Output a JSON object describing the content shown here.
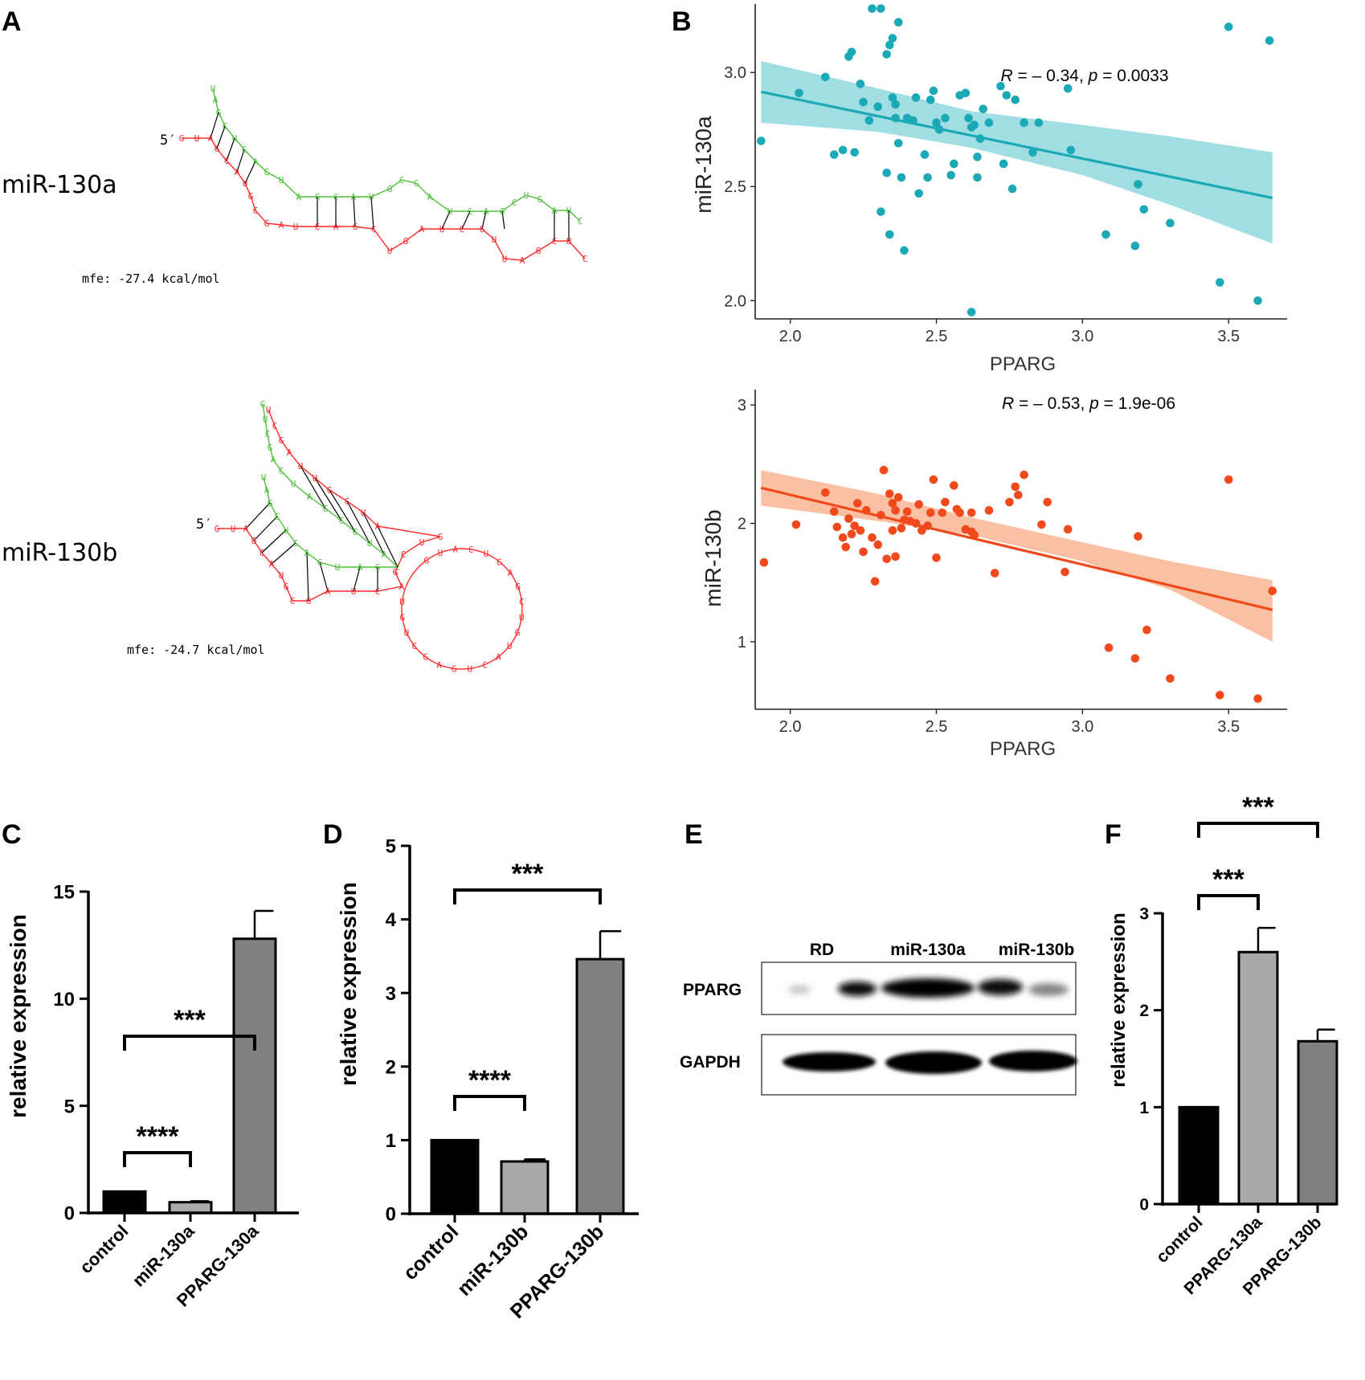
{
  "panel_labels": {
    "a": "A",
    "b": "B",
    "c": "C",
    "d": "D",
    "e": "E",
    "f": "F"
  },
  "rna_structures": [
    {
      "name": "miR-130a",
      "five_prime": "5′",
      "mfe": "mfe: -27.4 kcal/mol",
      "colors": {
        "mirna": "#4ec23a",
        "target": "#ff2a2a",
        "pair": "#000000"
      }
    },
    {
      "name": "miR-130b",
      "five_prime": "5′",
      "mfe": "mfe: -24.7 kcal/mol",
      "colors": {
        "mirna": "#4ec23a",
        "target": "#ff2a2a",
        "pair": "#000000"
      }
    }
  ],
  "western_blot": {
    "lanes": [
      "RD",
      "miR-130a",
      "miR-130b"
    ],
    "rows": [
      "PPARG",
      "GAPDH"
    ]
  },
  "chart_data": [
    {
      "id": "B-top",
      "type": "scatter",
      "xlabel": "PPARG",
      "ylabel": "miR-130a",
      "annotation": {
        "r_label": "R",
        "r_value": " = – 0.34, ",
        "p_label": "p",
        "p_value": " = 0.0033"
      },
      "xlim": [
        1.88,
        3.7
      ],
      "ylim": [
        1.92,
        3.3
      ],
      "xticks": [
        2.0,
        2.5,
        3.0,
        3.5
      ],
      "xtick_labels": [
        "2.0",
        "2.5",
        "3.0",
        "3.5"
      ],
      "yticks": [
        2.0,
        2.5,
        3.0
      ],
      "ytick_labels": [
        "2.0",
        "2.5",
        "3.0"
      ],
      "color": "#1ba9b5",
      "band_color": "#8fd8df",
      "fit": {
        "x": [
          1.9,
          3.65
        ],
        "y": [
          2.915,
          2.45
        ]
      },
      "band": {
        "x": [
          1.9,
          2.3,
          2.62,
          3.0,
          3.3,
          3.65
        ],
        "upper": [
          3.05,
          2.93,
          2.83,
          2.77,
          2.72,
          2.65
        ],
        "lower": [
          2.78,
          2.74,
          2.67,
          2.55,
          2.42,
          2.25
        ]
      },
      "points": [
        [
          1.9,
          2.7
        ],
        [
          2.03,
          2.91
        ],
        [
          2.12,
          2.98
        ],
        [
          2.15,
          2.64
        ],
        [
          2.18,
          2.66
        ],
        [
          2.2,
          3.07
        ],
        [
          2.21,
          3.09
        ],
        [
          2.22,
          2.65
        ],
        [
          2.24,
          2.95
        ],
        [
          2.25,
          2.87
        ],
        [
          2.27,
          2.79
        ],
        [
          2.28,
          3.28
        ],
        [
          2.3,
          2.85
        ],
        [
          2.31,
          3.28
        ],
        [
          2.31,
          2.39
        ],
        [
          2.33,
          2.56
        ],
        [
          2.33,
          3.08
        ],
        [
          2.34,
          3.12
        ],
        [
          2.34,
          2.29
        ],
        [
          2.35,
          3.15
        ],
        [
          2.35,
          2.89
        ],
        [
          2.36,
          2.86
        ],
        [
          2.36,
          2.8
        ],
        [
          2.37,
          2.69
        ],
        [
          2.37,
          3.22
        ],
        [
          2.38,
          2.54
        ],
        [
          2.39,
          2.22
        ],
        [
          2.4,
          2.8
        ],
        [
          2.42,
          2.79
        ],
        [
          2.43,
          2.89
        ],
        [
          2.44,
          2.47
        ],
        [
          2.46,
          2.64
        ],
        [
          2.47,
          2.54
        ],
        [
          2.48,
          2.88
        ],
        [
          2.49,
          2.92
        ],
        [
          2.5,
          2.78
        ],
        [
          2.51,
          2.75
        ],
        [
          2.53,
          2.8
        ],
        [
          2.55,
          2.55
        ],
        [
          2.56,
          2.6
        ],
        [
          2.58,
          2.9
        ],
        [
          2.6,
          2.91
        ],
        [
          2.61,
          2.8
        ],
        [
          2.62,
          2.76
        ],
        [
          2.63,
          2.77
        ],
        [
          2.64,
          2.54
        ],
        [
          2.64,
          2.63
        ],
        [
          2.65,
          2.71
        ],
        [
          2.66,
          2.84
        ],
        [
          2.68,
          2.78
        ],
        [
          2.72,
          2.94
        ],
        [
          2.73,
          2.6
        ],
        [
          2.74,
          2.9
        ],
        [
          2.76,
          2.49
        ],
        [
          2.77,
          2.88
        ],
        [
          2.8,
          2.78
        ],
        [
          2.83,
          2.65
        ],
        [
          2.85,
          2.78
        ],
        [
          2.95,
          2.93
        ],
        [
          2.96,
          2.66
        ],
        [
          3.08,
          2.29
        ],
        [
          3.18,
          2.24
        ],
        [
          3.19,
          2.51
        ],
        [
          3.21,
          2.4
        ],
        [
          3.3,
          2.34
        ],
        [
          3.47,
          2.08
        ],
        [
          3.5,
          3.2
        ],
        [
          3.6,
          2.0
        ],
        [
          3.64,
          3.14
        ],
        [
          2.62,
          1.95
        ]
      ]
    },
    {
      "id": "B-bottom",
      "type": "scatter",
      "xlabel": "PPARG",
      "ylabel": "miR-130b",
      "annotation": {
        "r_label": "R",
        "r_value": " = – 0.53, ",
        "p_label": "p",
        "p_value": " = 1.9e-06"
      },
      "xlim": [
        1.88,
        3.7
      ],
      "ylim": [
        0.43,
        3.13
      ],
      "xticks": [
        2.0,
        2.5,
        3.0,
        3.5
      ],
      "xtick_labels": [
        "2.0",
        "2.5",
        "3.0",
        "3.5"
      ],
      "yticks": [
        1,
        2,
        3
      ],
      "ytick_labels": [
        "1",
        "2",
        "3"
      ],
      "color": "#f04a1c",
      "band_color": "#f9b594",
      "fit": {
        "x": [
          1.9,
          3.65
        ],
        "y": [
          2.3,
          1.27
        ]
      },
      "band": {
        "x": [
          1.9,
          2.3,
          2.62,
          3.0,
          3.3,
          3.65
        ],
        "upper": [
          2.45,
          2.25,
          2.05,
          1.84,
          1.68,
          1.52
        ],
        "lower": [
          2.15,
          2.02,
          1.9,
          1.68,
          1.44,
          1.0
        ]
      },
      "points": [
        [
          1.91,
          1.67
        ],
        [
          2.02,
          1.99
        ],
        [
          2.12,
          2.26
        ],
        [
          2.15,
          2.1
        ],
        [
          2.16,
          1.97
        ],
        [
          2.18,
          1.88
        ],
        [
          2.19,
          1.8
        ],
        [
          2.2,
          2.04
        ],
        [
          2.21,
          1.91
        ],
        [
          2.22,
          1.98
        ],
        [
          2.23,
          2.17
        ],
        [
          2.24,
          1.94
        ],
        [
          2.25,
          1.76
        ],
        [
          2.26,
          2.11
        ],
        [
          2.28,
          1.88
        ],
        [
          2.29,
          1.51
        ],
        [
          2.3,
          1.82
        ],
        [
          2.31,
          2.07
        ],
        [
          2.32,
          2.45
        ],
        [
          2.33,
          1.7
        ],
        [
          2.34,
          2.25
        ],
        [
          2.35,
          2.17
        ],
        [
          2.35,
          1.94
        ],
        [
          2.36,
          1.72
        ],
        [
          2.36,
          2.11
        ],
        [
          2.37,
          2.22
        ],
        [
          2.38,
          1.96
        ],
        [
          2.39,
          2.03
        ],
        [
          2.4,
          2.1
        ],
        [
          2.41,
          2.02
        ],
        [
          2.43,
          2.0
        ],
        [
          2.44,
          2.16
        ],
        [
          2.45,
          1.94
        ],
        [
          2.47,
          1.98
        ],
        [
          2.48,
          2.09
        ],
        [
          2.49,
          2.37
        ],
        [
          2.5,
          1.71
        ],
        [
          2.52,
          2.09
        ],
        [
          2.53,
          2.18
        ],
        [
          2.56,
          2.32
        ],
        [
          2.57,
          2.12
        ],
        [
          2.58,
          2.09
        ],
        [
          2.6,
          1.95
        ],
        [
          2.62,
          2.09
        ],
        [
          2.62,
          1.93
        ],
        [
          2.63,
          1.9
        ],
        [
          2.68,
          2.11
        ],
        [
          2.7,
          1.58
        ],
        [
          2.75,
          2.18
        ],
        [
          2.77,
          2.31
        ],
        [
          2.78,
          2.24
        ],
        [
          2.8,
          2.41
        ],
        [
          2.86,
          1.99
        ],
        [
          2.88,
          2.18
        ],
        [
          2.95,
          1.95
        ],
        [
          2.94,
          1.59
        ],
        [
          3.09,
          0.95
        ],
        [
          3.18,
          0.86
        ],
        [
          3.19,
          1.89
        ],
        [
          3.22,
          1.1
        ],
        [
          3.3,
          0.69
        ],
        [
          3.47,
          0.55
        ],
        [
          3.5,
          2.37
        ],
        [
          3.6,
          0.52
        ],
        [
          3.65,
          1.43
        ]
      ]
    },
    {
      "id": "C",
      "type": "bar",
      "ylabel": "relative expression",
      "categories": [
        "control",
        "miR-130a",
        "PPARG-130a"
      ],
      "values": [
        1.0,
        0.5,
        12.8
      ],
      "errors": [
        0,
        0.05,
        1.3
      ],
      "fills": [
        "#000000",
        "#a9a9a9",
        "#808080"
      ],
      "ylim": [
        0,
        15
      ],
      "yticks": [
        0,
        5,
        10,
        15
      ],
      "ytick_labels": [
        "0",
        "5",
        "10",
        "15"
      ],
      "brackets": [
        {
          "from": 0,
          "to": 1,
          "label": "****"
        },
        {
          "from": 0,
          "to": 2,
          "label": "***"
        }
      ]
    },
    {
      "id": "D",
      "type": "bar",
      "ylabel": "relative expression",
      "categories": [
        "control",
        "miR-130b",
        "PPARG-130b"
      ],
      "values": [
        1.0,
        0.71,
        3.46
      ],
      "errors": [
        0,
        0.03,
        0.38
      ],
      "fills": [
        "#000000",
        "#a9a9a9",
        "#808080"
      ],
      "ylim": [
        0,
        5
      ],
      "yticks": [
        0,
        1,
        2,
        3,
        4,
        5
      ],
      "ytick_labels": [
        "0",
        "1",
        "2",
        "3",
        "4",
        "5"
      ],
      "brackets": [
        {
          "from": 0,
          "to": 1,
          "label": "****"
        },
        {
          "from": 0,
          "to": 2,
          "label": "***"
        }
      ]
    },
    {
      "id": "F",
      "type": "bar",
      "ylabel": "relative expression",
      "categories": [
        "control",
        "PPARG-130a",
        "PPARG-130b"
      ],
      "values": [
        1.0,
        2.6,
        1.68
      ],
      "errors": [
        0,
        0.25,
        0.12
      ],
      "fills": [
        "#000000",
        "#a9a9a9",
        "#808080"
      ],
      "ylim": [
        0,
        3
      ],
      "yticks": [
        0,
        1,
        2,
        3
      ],
      "ytick_labels": [
        "0",
        "1",
        "2",
        "3"
      ],
      "brackets": [
        {
          "from": 0,
          "to": 1,
          "label": "***"
        },
        {
          "from": 0,
          "to": 2,
          "label": "***"
        }
      ]
    }
  ]
}
